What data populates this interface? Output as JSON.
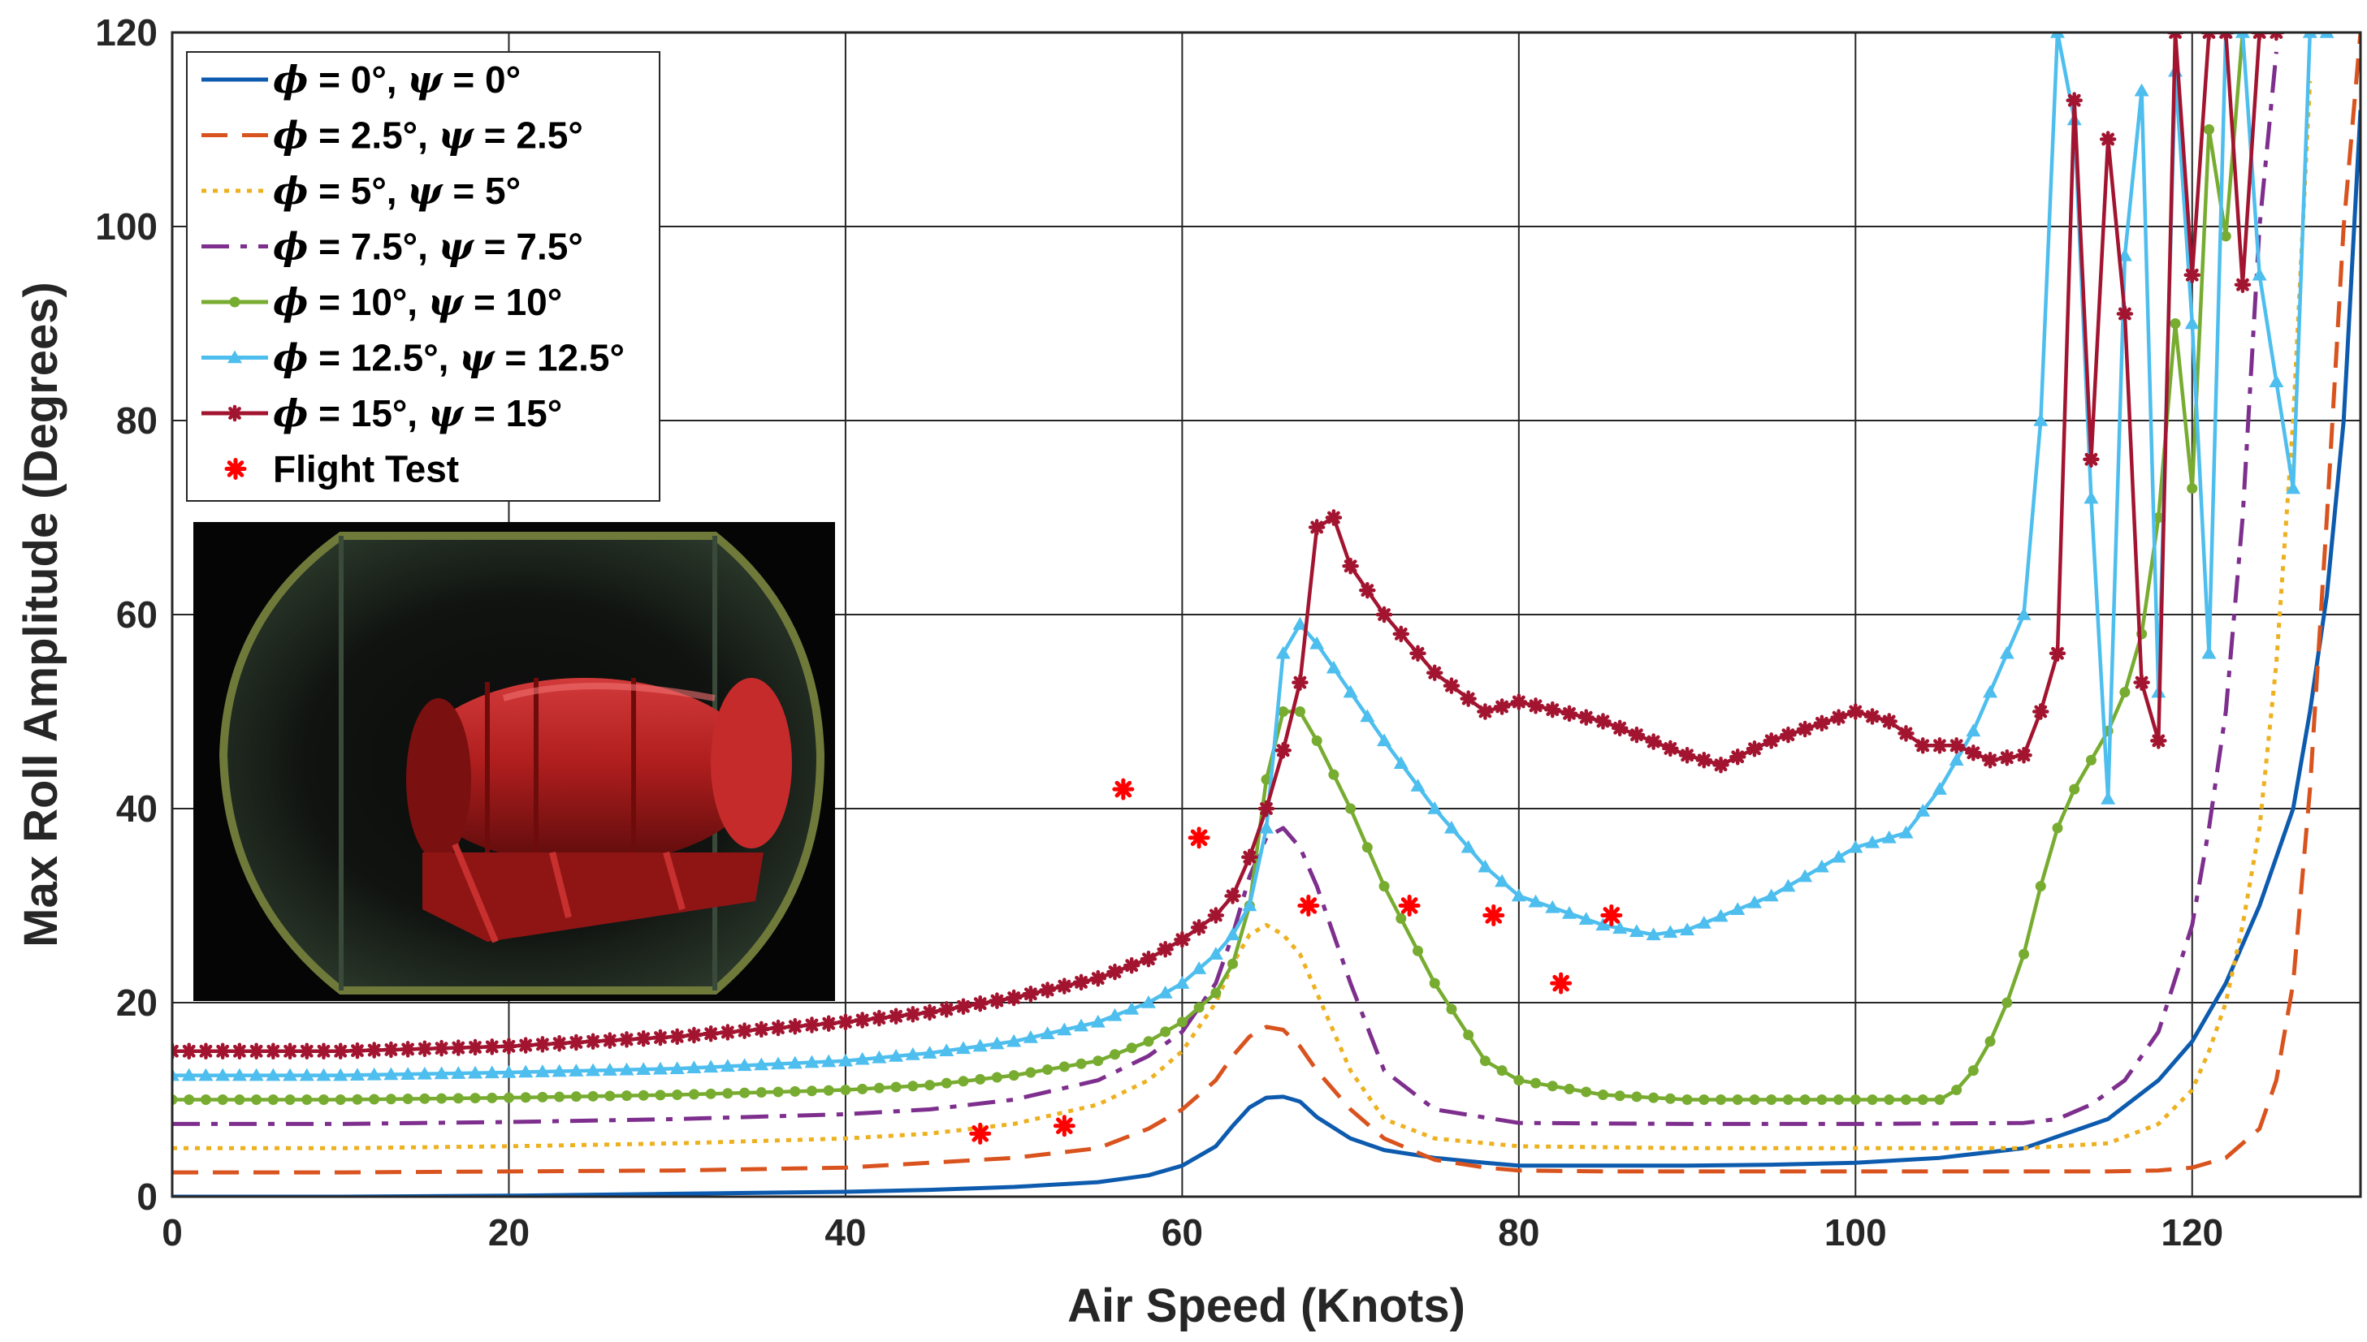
{
  "chart_data": {
    "type": "line",
    "title": "",
    "xlabel": "Air Speed (Knots)",
    "ylabel": "Max Roll Amplitude (Degrees)",
    "xlim": [
      0,
      130
    ],
    "ylim": [
      0,
      120
    ],
    "xticks": [
      0,
      20,
      40,
      60,
      80,
      100,
      120
    ],
    "yticks": [
      0,
      20,
      40,
      60,
      80,
      100,
      120
    ],
    "grid": true,
    "legend_position": "top-left",
    "series": [
      {
        "name": "ϕ = 0°, ψ = 0°",
        "legend_sym1": "ϕ",
        "legend_mid": " = 0°, ",
        "legend_sym2": "ψ",
        "legend_end": " = 0°",
        "color": "#0d5bae",
        "dash": "",
        "marker": "none",
        "x": [
          0,
          10,
          20,
          30,
          40,
          45,
          50,
          55,
          58,
          60,
          62,
          63,
          64,
          65,
          66,
          67,
          68,
          70,
          72,
          75,
          78,
          80,
          85,
          90,
          95,
          100,
          105,
          110,
          115,
          118,
          120,
          122,
          124,
          126,
          127,
          128,
          129,
          130
        ],
        "y": [
          0,
          0,
          0.1,
          0.3,
          0.5,
          0.7,
          1.0,
          1.5,
          2.2,
          3.2,
          5.2,
          7.3,
          9.2,
          10.2,
          10.3,
          9.8,
          8.2,
          6.0,
          4.8,
          4.0,
          3.5,
          3.2,
          3.2,
          3.2,
          3.3,
          3.5,
          4.0,
          5.0,
          8.0,
          12,
          16,
          22,
          30,
          40,
          50,
          62,
          80,
          112
        ]
      },
      {
        "name": "ϕ = 2.5°, ψ = 2.5°",
        "legend_sym1": "ϕ",
        "legend_mid": " = 2.5°, ",
        "legend_sym2": "ψ",
        "legend_end": " = 2.5°",
        "color": "#d9531e",
        "dash": "32,18",
        "marker": "none",
        "x": [
          0,
          10,
          20,
          30,
          40,
          45,
          50,
          55,
          58,
          60,
          62,
          63,
          64,
          65,
          66,
          67,
          68,
          70,
          72,
          75,
          78,
          80,
          85,
          90,
          95,
          100,
          105,
          110,
          115,
          118,
          120,
          122,
          124,
          125,
          126,
          127,
          128,
          129,
          130
        ],
        "y": [
          2.5,
          2.5,
          2.6,
          2.7,
          3.0,
          3.5,
          4.0,
          5.0,
          7.0,
          9.0,
          12,
          14.5,
          16.5,
          17.5,
          17.2,
          15.5,
          13,
          9.0,
          6.0,
          3.8,
          3.0,
          2.7,
          2.6,
          2.6,
          2.6,
          2.6,
          2.6,
          2.6,
          2.6,
          2.7,
          3.0,
          4.0,
          7.0,
          12,
          22,
          42,
          70,
          100,
          120
        ]
      },
      {
        "name": "ϕ = 5°, ψ = 5°",
        "legend_sym1": "ϕ",
        "legend_mid": " = 5°, ",
        "legend_sym2": "ψ",
        "legend_end": " = 5°",
        "color": "#edb120",
        "dash": "6,8",
        "marker": "none",
        "x": [
          0,
          10,
          20,
          30,
          40,
          45,
          50,
          55,
          58,
          60,
          62,
          63,
          64,
          65,
          66,
          67,
          68,
          70,
          72,
          75,
          80,
          90,
          100,
          110,
          115,
          118,
          120,
          121,
          122,
          123,
          124,
          125,
          126,
          127
        ],
        "y": [
          5,
          5,
          5.2,
          5.5,
          6.0,
          6.5,
          7.5,
          9.5,
          12,
          15,
          20,
          24,
          27,
          28,
          27,
          25,
          21,
          13,
          8.0,
          6.0,
          5.2,
          5.0,
          5.0,
          5.0,
          5.5,
          7.5,
          11,
          15,
          20,
          28,
          38,
          55,
          80,
          115
        ]
      },
      {
        "name": "ϕ = 7.5°, ψ = 7.5°",
        "legend_sym1": "ϕ",
        "legend_mid": " = 7.5°, ",
        "legend_sym2": "ψ",
        "legend_end": " = 7.5°",
        "color": "#7e2f8e",
        "dash": "34,14,8,14",
        "marker": "none",
        "x": [
          0,
          10,
          20,
          30,
          40,
          45,
          50,
          55,
          58,
          60,
          62,
          63,
          64,
          65,
          66,
          67,
          68,
          70,
          72,
          75,
          80,
          90,
          100,
          110,
          112,
          114,
          116,
          118,
          120,
          121,
          122,
          123,
          124,
          125
        ],
        "y": [
          7.5,
          7.5,
          7.7,
          8.0,
          8.5,
          9.0,
          10,
          12,
          14.5,
          17,
          22,
          27,
          33,
          37,
          38,
          36,
          32,
          22,
          13,
          9.0,
          7.6,
          7.5,
          7.5,
          7.6,
          8.0,
          9.5,
          12,
          17,
          28,
          38,
          50,
          70,
          100,
          118
        ]
      },
      {
        "name": "ϕ = 10°, ψ = 10°",
        "legend_sym1": "ϕ",
        "legend_mid": " = 10°, ",
        "legend_sym2": "ψ",
        "legend_end": " = 10°",
        "color": "#77ac30",
        "dash": "",
        "marker": "dot",
        "x": [
          0,
          10,
          20,
          30,
          40,
          45,
          50,
          55,
          58,
          60,
          61,
          62,
          63,
          64,
          65,
          66,
          67,
          68,
          70,
          72,
          75,
          78,
          80,
          85,
          90,
          95,
          100,
          105,
          106,
          107,
          108,
          109,
          110,
          111,
          112,
          113,
          114,
          115,
          116,
          117,
          118,
          119,
          120,
          121,
          122,
          123
        ],
        "y": [
          10,
          10,
          10.2,
          10.5,
          11,
          11.5,
          12.5,
          14,
          16,
          18,
          19.5,
          21,
          24,
          30,
          43,
          50,
          50,
          47,
          40,
          32,
          22,
          14,
          12,
          10.5,
          10,
          10,
          10,
          10,
          11,
          13,
          16,
          20,
          25,
          32,
          38,
          42,
          45,
          48,
          52,
          58,
          70,
          90,
          73,
          110,
          99,
          120
        ]
      },
      {
        "name": "ϕ = 12.5°, ψ = 12.5°",
        "legend_sym1": "ϕ",
        "legend_mid": " = 12.5°, ",
        "legend_sym2": "ψ",
        "legend_end": " = 12.5°",
        "color": "#4dbeee",
        "dash": "",
        "marker": "triangle",
        "x": [
          0,
          10,
          20,
          30,
          40,
          45,
          50,
          55,
          58,
          60,
          62,
          63,
          64,
          65,
          66,
          67,
          68,
          70,
          72,
          75,
          78,
          80,
          85,
          88,
          90,
          95,
          100,
          103,
          105,
          107,
          110,
          111,
          112,
          113,
          114,
          115,
          116,
          117,
          118,
          119,
          120,
          121,
          122,
          123,
          124,
          126,
          127,
          128
        ],
        "y": [
          12.5,
          12.5,
          12.8,
          13.2,
          14,
          14.8,
          16,
          18,
          20,
          22,
          25,
          27,
          30,
          38,
          56,
          59,
          57,
          52,
          47,
          40,
          34,
          31,
          28,
          27,
          27.5,
          31,
          36,
          37.5,
          42,
          48,
          60,
          80,
          120,
          111,
          72,
          41,
          97,
          114,
          52,
          116,
          90,
          56,
          120,
          120,
          95,
          73,
          120,
          120
        ]
      },
      {
        "name": "ϕ = 15°, ψ = 15°",
        "legend_sym1": "ϕ",
        "legend_mid": " = 15°, ",
        "legend_sym2": "ψ",
        "legend_end": " = 15°",
        "color": "#a2142f",
        "dash": "",
        "marker": "star",
        "x": [
          0,
          10,
          20,
          30,
          40,
          45,
          50,
          55,
          58,
          60,
          62,
          63,
          64,
          65,
          66,
          67,
          68,
          69,
          70,
          72,
          75,
          78,
          80,
          85,
          90,
          92,
          95,
          100,
          102,
          104,
          106,
          108,
          110,
          111,
          112,
          113,
          114,
          115,
          116,
          117,
          118,
          119,
          120,
          121,
          122,
          123,
          124,
          125
        ],
        "y": [
          15,
          15,
          15.5,
          16.5,
          18,
          19,
          20.5,
          22.5,
          24.5,
          26.5,
          29,
          31,
          35,
          40,
          46,
          53,
          69,
          70,
          65,
          60,
          54,
          50,
          51,
          49,
          45.5,
          44.5,
          47,
          50,
          49,
          46.5,
          46.5,
          45,
          45.5,
          50,
          56,
          113,
          76,
          109,
          91,
          53,
          47,
          120,
          95,
          120,
          120,
          94,
          120,
          120
        ]
      },
      {
        "name": "Flight Test",
        "legend_text": "Flight Test",
        "color": "#ff0000",
        "dash": "",
        "marker": "asterisk-only",
        "x": [
          48,
          53,
          56.5,
          61,
          67.5,
          73.5,
          78.5,
          82.5,
          85.5
        ],
        "y": [
          6.5,
          7.3,
          42,
          37,
          30,
          30,
          29,
          22,
          29
        ]
      }
    ],
    "inset_image": "photo-of-red-cylindrical-store-in-wind-tunnel"
  }
}
